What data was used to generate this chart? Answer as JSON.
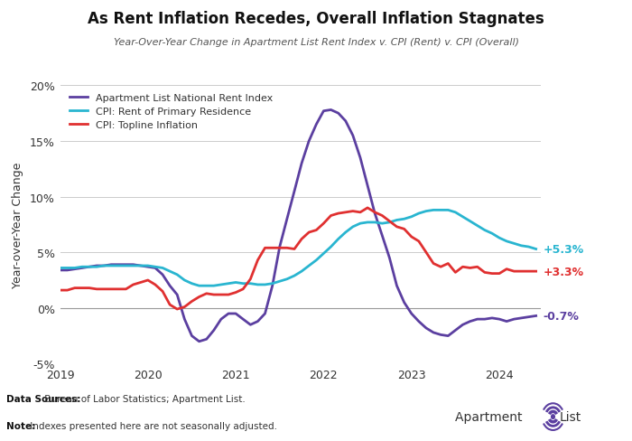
{
  "title": "As Rent Inflation Recedes, Overall Inflation Stagnates",
  "subtitle": "Year-Over-Year Change in Apartment List Rent Index v. CPI (Rent) v. CPI (Overall)",
  "ylabel": "Year-over-Year Change",
  "ylim": [
    -0.05,
    0.2
  ],
  "yticks": [
    -0.05,
    0.0,
    0.05,
    0.1,
    0.15,
    0.2
  ],
  "ytick_labels": [
    "-5%",
    "0%",
    "5%",
    "10%",
    "15%",
    "20%"
  ],
  "background_color": "#ffffff",
  "plot_bg_color": "#ffffff",
  "grid_color": "#cccccc",
  "note_bold": "Data Sources:",
  "note_normal": " Bureau of Labor Statistics; Apartment List.",
  "note2_bold": "Note:",
  "note2_normal": " Indexes presented here are not seasonally adjusted.",
  "legend": [
    {
      "label": "Apartment List National Rent Index",
      "color": "#5b3fa0"
    },
    {
      "label": "CPI: Rent of Primary Residence",
      "color": "#29b5d0"
    },
    {
      "label": "CPI: Topline Inflation",
      "color": "#e03030"
    }
  ],
  "end_labels": [
    {
      "text": "+5.3%",
      "color": "#29b5d0",
      "value": 0.053
    },
    {
      "text": "+3.3%",
      "color": "#e03030",
      "value": 0.033
    },
    {
      "text": "-0.7%",
      "color": "#5b3fa0",
      "value": -0.007
    }
  ],
  "apt_list_x": [
    2019.0,
    2019.083,
    2019.167,
    2019.25,
    2019.333,
    2019.417,
    2019.5,
    2019.583,
    2019.667,
    2019.75,
    2019.833,
    2019.917,
    2020.0,
    2020.083,
    2020.167,
    2020.25,
    2020.333,
    2020.417,
    2020.5,
    2020.583,
    2020.667,
    2020.75,
    2020.833,
    2020.917,
    2021.0,
    2021.083,
    2021.167,
    2021.25,
    2021.333,
    2021.417,
    2021.5,
    2021.583,
    2021.667,
    2021.75,
    2021.833,
    2021.917,
    2022.0,
    2022.083,
    2022.167,
    2022.25,
    2022.333,
    2022.417,
    2022.5,
    2022.583,
    2022.667,
    2022.75,
    2022.833,
    2022.917,
    2023.0,
    2023.083,
    2023.167,
    2023.25,
    2023.333,
    2023.417,
    2023.5,
    2023.583,
    2023.667,
    2023.75,
    2023.833,
    2023.917,
    2024.0,
    2024.083,
    2024.167,
    2024.25,
    2024.333,
    2024.417
  ],
  "apt_list_y": [
    0.034,
    0.034,
    0.035,
    0.036,
    0.037,
    0.038,
    0.038,
    0.039,
    0.039,
    0.039,
    0.039,
    0.038,
    0.037,
    0.036,
    0.03,
    0.02,
    0.012,
    -0.01,
    -0.025,
    -0.03,
    -0.028,
    -0.02,
    -0.01,
    -0.005,
    -0.005,
    -0.01,
    -0.015,
    -0.012,
    -0.005,
    0.02,
    0.055,
    0.08,
    0.105,
    0.13,
    0.15,
    0.165,
    0.177,
    0.178,
    0.175,
    0.168,
    0.155,
    0.135,
    0.11,
    0.085,
    0.065,
    0.045,
    0.02,
    0.005,
    -0.005,
    -0.012,
    -0.018,
    -0.022,
    -0.024,
    -0.025,
    -0.02,
    -0.015,
    -0.012,
    -0.01,
    -0.01,
    -0.009,
    -0.01,
    -0.012,
    -0.01,
    -0.009,
    -0.008,
    -0.007
  ],
  "cpi_rent_x": [
    2019.0,
    2019.083,
    2019.167,
    2019.25,
    2019.333,
    2019.417,
    2019.5,
    2019.583,
    2019.667,
    2019.75,
    2019.833,
    2019.917,
    2020.0,
    2020.083,
    2020.167,
    2020.25,
    2020.333,
    2020.417,
    2020.5,
    2020.583,
    2020.667,
    2020.75,
    2020.833,
    2020.917,
    2021.0,
    2021.083,
    2021.167,
    2021.25,
    2021.333,
    2021.417,
    2021.5,
    2021.583,
    2021.667,
    2021.75,
    2021.833,
    2021.917,
    2022.0,
    2022.083,
    2022.167,
    2022.25,
    2022.333,
    2022.417,
    2022.5,
    2022.583,
    2022.667,
    2022.75,
    2022.833,
    2022.917,
    2023.0,
    2023.083,
    2023.167,
    2023.25,
    2023.333,
    2023.417,
    2023.5,
    2023.583,
    2023.667,
    2023.75,
    2023.833,
    2023.917,
    2024.0,
    2024.083,
    2024.167,
    2024.25,
    2024.333,
    2024.417
  ],
  "cpi_rent_y": [
    0.036,
    0.036,
    0.036,
    0.037,
    0.037,
    0.037,
    0.038,
    0.038,
    0.038,
    0.038,
    0.038,
    0.038,
    0.038,
    0.037,
    0.036,
    0.033,
    0.03,
    0.025,
    0.022,
    0.02,
    0.02,
    0.02,
    0.021,
    0.022,
    0.023,
    0.022,
    0.022,
    0.021,
    0.021,
    0.022,
    0.024,
    0.026,
    0.029,
    0.033,
    0.038,
    0.043,
    0.049,
    0.055,
    0.062,
    0.068,
    0.073,
    0.076,
    0.077,
    0.077,
    0.076,
    0.077,
    0.079,
    0.08,
    0.082,
    0.085,
    0.087,
    0.088,
    0.088,
    0.088,
    0.086,
    0.082,
    0.078,
    0.074,
    0.07,
    0.067,
    0.063,
    0.06,
    0.058,
    0.056,
    0.055,
    0.053
  ],
  "cpi_topline_x": [
    2019.0,
    2019.083,
    2019.167,
    2019.25,
    2019.333,
    2019.417,
    2019.5,
    2019.583,
    2019.667,
    2019.75,
    2019.833,
    2019.917,
    2020.0,
    2020.083,
    2020.167,
    2020.25,
    2020.333,
    2020.417,
    2020.5,
    2020.583,
    2020.667,
    2020.75,
    2020.833,
    2020.917,
    2021.0,
    2021.083,
    2021.167,
    2021.25,
    2021.333,
    2021.417,
    2021.5,
    2021.583,
    2021.667,
    2021.75,
    2021.833,
    2021.917,
    2022.0,
    2022.083,
    2022.167,
    2022.25,
    2022.333,
    2022.417,
    2022.5,
    2022.583,
    2022.667,
    2022.75,
    2022.833,
    2022.917,
    2023.0,
    2023.083,
    2023.167,
    2023.25,
    2023.333,
    2023.417,
    2023.5,
    2023.583,
    2023.667,
    2023.75,
    2023.833,
    2023.917,
    2024.0,
    2024.083,
    2024.167,
    2024.25,
    2024.333,
    2024.417
  ],
  "cpi_topline_y": [
    0.016,
    0.016,
    0.018,
    0.018,
    0.018,
    0.017,
    0.017,
    0.017,
    0.017,
    0.017,
    0.021,
    0.023,
    0.025,
    0.021,
    0.015,
    0.003,
    -0.001,
    0.001,
    0.006,
    0.01,
    0.013,
    0.012,
    0.012,
    0.012,
    0.014,
    0.017,
    0.026,
    0.043,
    0.054,
    0.054,
    0.054,
    0.054,
    0.053,
    0.062,
    0.068,
    0.07,
    0.076,
    0.083,
    0.085,
    0.086,
    0.087,
    0.086,
    0.09,
    0.086,
    0.083,
    0.078,
    0.073,
    0.071,
    0.064,
    0.06,
    0.05,
    0.04,
    0.037,
    0.04,
    0.032,
    0.037,
    0.036,
    0.037,
    0.032,
    0.031,
    0.031,
    0.035,
    0.033,
    0.033,
    0.033,
    0.033
  ],
  "xmin": 2019.0,
  "xmax": 2024.417,
  "xticks": [
    2019,
    2020,
    2021,
    2022,
    2023,
    2024
  ]
}
